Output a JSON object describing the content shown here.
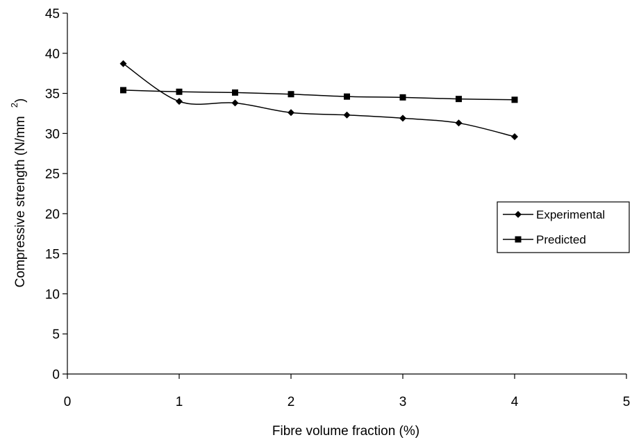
{
  "chart_data": {
    "type": "line",
    "title": "",
    "xlabel": "Fibre volume fraction (%)",
    "ylabel": "Compressive strength (N/mm",
    "ylabel_superscript": "2",
    "ylabel_suffix": ")",
    "xlim": [
      0,
      5
    ],
    "ylim": [
      0,
      45
    ],
    "xticks": [
      "0",
      "1",
      "2",
      "3",
      "4",
      "5"
    ],
    "yticks": [
      "0",
      "5",
      "10",
      "15",
      "20",
      "25",
      "30",
      "35",
      "40",
      "45"
    ],
    "grid": false,
    "legend_position": "right",
    "series": [
      {
        "name": "Experimental",
        "marker": "diamond",
        "x": [
          0.5,
          1.0,
          1.5,
          2.0,
          2.5,
          3.0,
          3.5,
          4.0
        ],
        "y": [
          38.7,
          34.0,
          33.8,
          32.6,
          32.3,
          31.9,
          31.3,
          29.6
        ]
      },
      {
        "name": "Predicted",
        "marker": "square",
        "x": [
          0.5,
          1.0,
          1.5,
          2.0,
          2.5,
          3.0,
          3.5,
          4.0
        ],
        "y": [
          35.4,
          35.2,
          35.1,
          34.9,
          34.6,
          34.5,
          34.3,
          34.2
        ]
      }
    ]
  }
}
